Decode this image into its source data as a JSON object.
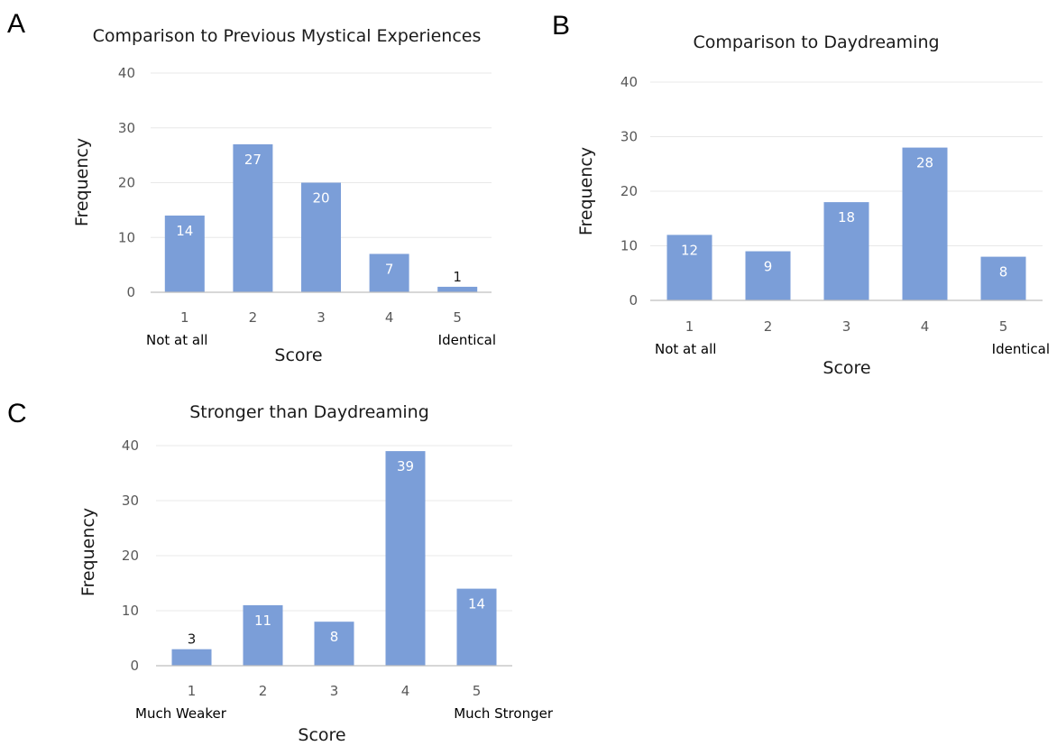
{
  "colors": {
    "bar": "#7b9ed8",
    "gridline": "#e8e8e8",
    "axis": "#bfbfbf",
    "label_inside": "#ffffff",
    "label_outside": "#1a1a1a"
  },
  "chart_data": [
    {
      "panel": "A",
      "type": "bar",
      "title": "Comparison to Previous Mystical Experiences",
      "xlabel": "Score",
      "ylabel": "Frequency",
      "categories": [
        "1",
        "2",
        "3",
        "4",
        "5"
      ],
      "values": [
        14,
        27,
        20,
        7,
        1
      ],
      "data_labels": [
        "14",
        "27",
        "20",
        "7",
        "1"
      ],
      "anchor_labels": [
        "Not at all",
        "Identical"
      ],
      "yticks": [
        "0",
        "10",
        "20",
        "30",
        "40"
      ],
      "ylim": [
        0,
        40
      ],
      "grid": true,
      "legend": "none"
    },
    {
      "panel": "B",
      "type": "bar",
      "title": "Comparison to Daydreaming",
      "xlabel": "Score",
      "ylabel": "Frequency",
      "categories": [
        "1",
        "2",
        "3",
        "4",
        "5"
      ],
      "values": [
        12,
        9,
        18,
        28,
        8
      ],
      "data_labels": [
        "12",
        "9",
        "18",
        "28",
        "8"
      ],
      "anchor_labels": [
        "Not at all",
        "Identical"
      ],
      "yticks": [
        "0",
        "10",
        "20",
        "30",
        "40"
      ],
      "ylim": [
        0,
        40
      ],
      "grid": true,
      "legend": "none"
    },
    {
      "panel": "C",
      "type": "bar",
      "title": "Stronger than Daydreaming",
      "xlabel": "Score",
      "ylabel": "Frequency",
      "categories": [
        "1",
        "2",
        "3",
        "4",
        "5"
      ],
      "values": [
        3,
        11,
        8,
        39,
        14
      ],
      "data_labels": [
        "3",
        "11",
        "8",
        "39",
        "14"
      ],
      "anchor_labels": [
        "Much Weaker",
        "Much Stronger"
      ],
      "yticks": [
        "0",
        "10",
        "20",
        "30",
        "40"
      ],
      "ylim": [
        0,
        40
      ],
      "grid": true,
      "legend": "none"
    }
  ]
}
